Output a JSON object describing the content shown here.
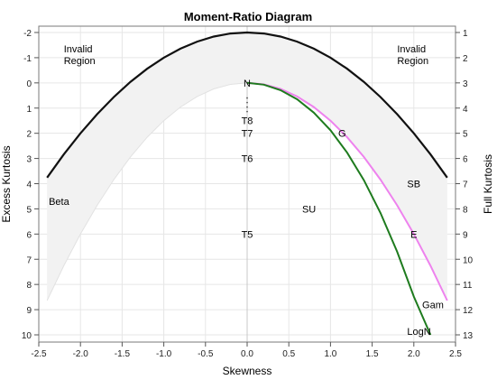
{
  "chart_data": {
    "type": "line",
    "title": "Moment-Ratio Diagram",
    "xlabel": "Skewness",
    "ylabel": "Excess Kurtosis",
    "y2label": "Full Kurtosis",
    "xlim": [
      -2.5,
      2.5
    ],
    "ylim": [
      -2,
      10
    ],
    "y_reversed": true,
    "grid": true,
    "x_ticks": [
      {
        "value": -2.5,
        "label": "-2.5"
      },
      {
        "value": -2.0,
        "label": "-2.0"
      },
      {
        "value": -1.5,
        "label": "-1.5"
      },
      {
        "value": -1.0,
        "label": "-1.0"
      },
      {
        "value": -0.5,
        "label": "-0.5"
      },
      {
        "value": 0.0,
        "label": "0.0"
      },
      {
        "value": 0.5,
        "label": "0.5"
      },
      {
        "value": 1.0,
        "label": "1.0"
      },
      {
        "value": 1.5,
        "label": "1.5"
      },
      {
        "value": 2.0,
        "label": "2.0"
      },
      {
        "value": 2.5,
        "label": "2.5"
      }
    ],
    "y_ticks": [
      {
        "value": -2,
        "label": "-2"
      },
      {
        "value": -1,
        "label": "-1"
      },
      {
        "value": 0,
        "label": "0"
      },
      {
        "value": 1,
        "label": "1"
      },
      {
        "value": 2,
        "label": "2"
      },
      {
        "value": 3,
        "label": "3"
      },
      {
        "value": 4,
        "label": "4"
      },
      {
        "value": 5,
        "label": "5"
      },
      {
        "value": 6,
        "label": "6"
      },
      {
        "value": 7,
        "label": "7"
      },
      {
        "value": 8,
        "label": "8"
      },
      {
        "value": 9,
        "label": "9"
      },
      {
        "value": 10,
        "label": "10"
      }
    ],
    "y2_ticks": [
      {
        "value": -2,
        "label": "1"
      },
      {
        "value": -1,
        "label": "2"
      },
      {
        "value": 0,
        "label": "3"
      },
      {
        "value": 1,
        "label": "4"
      },
      {
        "value": 2,
        "label": "5"
      },
      {
        "value": 3,
        "label": "6"
      },
      {
        "value": 4,
        "label": "7"
      },
      {
        "value": 5,
        "label": "8"
      },
      {
        "value": 6,
        "label": "9"
      },
      {
        "value": 7,
        "label": "10"
      },
      {
        "value": 8,
        "label": "11"
      },
      {
        "value": 9,
        "label": "12"
      },
      {
        "value": 10,
        "label": "13"
      }
    ],
    "boundary_curve": {
      "color": "#111111",
      "x": [
        -2.4,
        -2.2,
        -2.0,
        -1.8,
        -1.6,
        -1.4,
        -1.2,
        -1.0,
        -0.8,
        -0.6,
        -0.4,
        -0.2,
        0.0,
        0.2,
        0.4,
        0.6,
        0.8,
        1.0,
        1.2,
        1.4,
        1.6,
        1.8,
        2.0,
        2.2,
        2.4
      ],
      "y": [
        3.76,
        2.84,
        2.0,
        1.24,
        0.56,
        -0.04,
        -0.56,
        -1.0,
        -1.36,
        -1.64,
        -1.84,
        -1.96,
        -2.0,
        -1.96,
        -1.84,
        -1.64,
        -1.36,
        -1.0,
        -0.56,
        -0.04,
        0.56,
        1.24,
        2.0,
        2.84,
        3.76
      ]
    },
    "beta_region": {
      "fill": "#f2f2f2",
      "x": [
        -2.4,
        -2.2,
        -2.0,
        -1.8,
        -1.6,
        -1.4,
        -1.2,
        -1.0,
        -0.8,
        -0.6,
        -0.4,
        -0.2,
        0.0,
        0.2,
        0.4,
        0.6,
        0.8,
        1.0,
        1.2,
        1.4,
        1.6,
        1.8,
        2.0,
        2.2,
        2.4
      ],
      "y_lower": [
        8.64,
        7.26,
        6.0,
        4.86,
        3.84,
        2.94,
        2.16,
        1.5,
        0.96,
        0.54,
        0.24,
        0.06,
        0.0,
        0.06,
        0.24,
        0.54,
        0.96,
        1.5,
        2.16,
        2.94,
        3.84,
        4.86,
        6.0,
        7.26,
        8.64
      ]
    },
    "series": [
      {
        "name": "Gam",
        "color": "#ee82ee",
        "x": [
          0.0,
          0.2,
          0.4,
          0.6,
          0.8,
          1.0,
          1.2,
          1.4,
          1.6,
          1.8,
          2.0,
          2.2,
          2.4
        ],
        "y": [
          0.0,
          0.06,
          0.24,
          0.54,
          0.96,
          1.5,
          2.16,
          2.94,
          3.84,
          4.86,
          6.0,
          7.26,
          8.64
        ]
      },
      {
        "name": "LogN",
        "color": "#1e7b1e",
        "x": [
          0.0,
          0.2,
          0.4,
          0.6,
          0.8,
          1.0,
          1.2,
          1.4,
          1.6,
          1.8,
          2.0,
          2.2
        ],
        "y": [
          0.0,
          0.07,
          0.29,
          0.65,
          1.18,
          1.88,
          2.77,
          3.86,
          5.16,
          6.7,
          8.48,
          10.0
        ]
      }
    ],
    "points": [
      {
        "label": "N",
        "x": 0.0,
        "y": 0.0
      },
      {
        "label": "E",
        "x": 2.0,
        "y": 6.0
      },
      {
        "label": "G",
        "x": 1.14,
        "y": 2.0
      }
    ],
    "t_points": [
      {
        "label": "T8",
        "x": 0.0,
        "y": 1.5
      },
      {
        "label": "T7",
        "x": 0.0,
        "y": 2.0
      },
      {
        "label": "T6",
        "x": 0.0,
        "y": 3.0
      },
      {
        "label": "T5",
        "x": 0.0,
        "y": 6.0
      }
    ],
    "region_labels": [
      {
        "lines": [
          "Invalid",
          "Region"
        ],
        "x": -2.2,
        "y": -1.35
      },
      {
        "lines": [
          "Invalid",
          "Region"
        ],
        "x": 1.8,
        "y": -1.35
      },
      {
        "lines": [
          "Beta"
        ],
        "x": -2.38,
        "y": 4.7
      },
      {
        "lines": [
          "SU"
        ],
        "x": 0.66,
        "y": 5.0
      },
      {
        "lines": [
          "SB"
        ],
        "x": 1.92,
        "y": 4.0
      },
      {
        "lines": [
          "Gam"
        ],
        "x": 2.1,
        "y": 8.8
      },
      {
        "lines": [
          "LogN"
        ],
        "x": 1.92,
        "y": 9.85
      }
    ]
  }
}
